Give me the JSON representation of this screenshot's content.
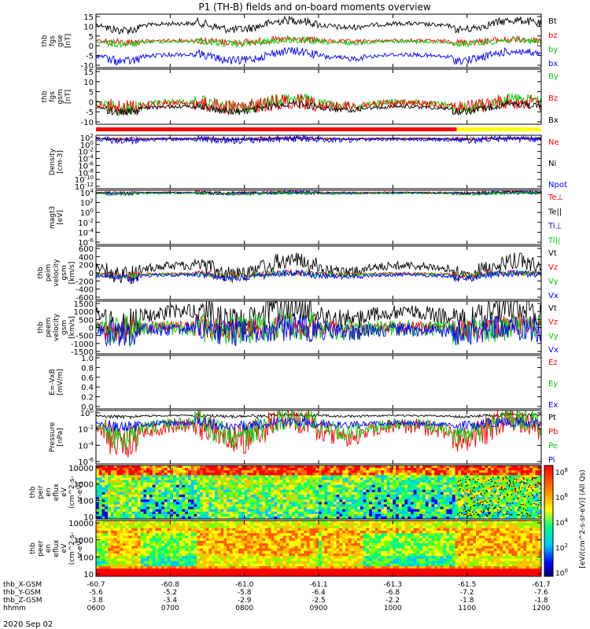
{
  "title": "P1 (TH-B) fields and on-board moments overview",
  "date_label": "2020 Sep 02",
  "chart_data": {
    "type": "line",
    "time_range_hhmm": [
      "0600",
      "1200"
    ],
    "panels": [
      {
        "id": "fgs_gse",
        "ylabel_lines": [
          "thb",
          "fgs",
          "gse",
          "[nT]"
        ],
        "ylim": [
          -15,
          15
        ],
        "ticks": [
          "15",
          "10",
          "5",
          "0",
          "-5",
          "-10"
        ],
        "legend": [
          {
            "label": "Bt",
            "color": "#000000"
          },
          {
            "label": "bz",
            "color": "#ff0000"
          },
          {
            "label": "by",
            "color": "#00cc00"
          },
          {
            "label": "bx",
            "color": "#0000ff"
          }
        ]
      },
      {
        "id": "fgs_gsm",
        "ylabel_lines": [
          "thb",
          "fgs",
          "gsm",
          "[nT]"
        ],
        "ylim": [
          -15,
          15
        ],
        "ticks": [
          "15",
          "10",
          "5",
          "0",
          "-5",
          "-10"
        ],
        "legend": [
          {
            "label": "By",
            "color": "#00cc00"
          },
          {
            "label": "Bz",
            "color": "#ff0000"
          },
          {
            "label": "Bx",
            "color": "#000000"
          }
        ]
      },
      {
        "id": "density",
        "ylabel_lines": [
          "Density",
          "[cm-3]"
        ],
        "ylim": [
          1e-12,
          100.0
        ],
        "scale": "log",
        "ticks": [
          "10^2",
          "10^0",
          "10^-2",
          "10^-4",
          "10^-6",
          "10^-8",
          "10^-10",
          "10^-12"
        ],
        "legend": [
          {
            "label": "Ne",
            "color": "#ff0000"
          },
          {
            "label": "Ni",
            "color": "#000000"
          },
          {
            "label": "Npot",
            "color": "#0000ff"
          }
        ]
      },
      {
        "id": "temperature",
        "ylabel_lines": [
          "magt3",
          "[eV]"
        ],
        "ylim": [
          1e-06,
          10000.0
        ],
        "scale": "log",
        "ticks": [
          "10^4",
          "10^2",
          "10^0",
          "10^-2",
          "10^-4",
          "10^-6"
        ],
        "legend": [
          {
            "label": "Te⊥",
            "color": "#ff0000"
          },
          {
            "label": "Te||",
            "color": "#000000"
          },
          {
            "label": "Ti⊥",
            "color": "#0000ff"
          },
          {
            "label": "Ti||",
            "color": "#00cc00"
          }
        ]
      },
      {
        "id": "peim_velocity",
        "ylabel_lines": [
          "thb",
          "peim",
          "velocity",
          "gsm",
          "[km/s]"
        ],
        "ylim": [
          -600,
          600
        ],
        "ticks": [
          "600",
          "400",
          "200",
          "0",
          "-200",
          "-400",
          "-600"
        ],
        "legend": [
          {
            "label": "Vt",
            "color": "#000000"
          },
          {
            "label": "Vz",
            "color": "#ff0000"
          },
          {
            "label": "Vy",
            "color": "#00cc00"
          },
          {
            "label": "Vx",
            "color": "#0000ff"
          }
        ]
      },
      {
        "id": "peem_velocity",
        "ylabel_lines": [
          "thb",
          "peem",
          "velocity",
          "gsm",
          "[km/s]"
        ],
        "ylim": [
          -1500,
          1500
        ],
        "ticks": [
          "1500",
          "1000",
          "500",
          "0",
          "-500",
          "-1000",
          "-1500"
        ],
        "legend": [
          {
            "label": "Vt",
            "color": "#000000"
          },
          {
            "label": "Vz",
            "color": "#ff0000"
          },
          {
            "label": "Vy",
            "color": "#00cc00"
          },
          {
            "label": "Vx",
            "color": "#0000ff"
          }
        ]
      },
      {
        "id": "e_field",
        "ylabel_lines": [
          "E=-VxB",
          "[mV/m]"
        ],
        "ylim": [
          0,
          1
        ],
        "ticks": [
          "1.0",
          "0.8",
          "0.6",
          "0.4",
          "0.2",
          "0.0"
        ],
        "legend": [
          {
            "label": "Ez",
            "color": "#ff0000"
          },
          {
            "label": "Ey",
            "color": "#00cc00"
          },
          {
            "label": "Ex",
            "color": "#0000ff"
          }
        ]
      },
      {
        "id": "pressure",
        "ylabel_lines": [
          "Pressure",
          "[nPa]"
        ],
        "ylim": [
          1e-06,
          1.0
        ],
        "scale": "log",
        "ticks": [
          "10^0",
          "10^-2",
          "10^-4",
          "10^-6"
        ],
        "legend": [
          {
            "label": "Pt",
            "color": "#000000"
          },
          {
            "label": "Pb",
            "color": "#ff0000"
          },
          {
            "label": "Pe",
            "color": "#00cc00"
          },
          {
            "label": "Pi",
            "color": "#0000ff"
          }
        ]
      },
      {
        "id": "peir_spec",
        "type": "heatmap",
        "ylabel_lines": [
          "thb",
          "peir",
          "en",
          "eflux",
          "eV",
          "(cm^2-s-",
          "sr-eV)"
        ],
        "ylim": [
          10,
          10000
        ],
        "scale": "log",
        "ticks": [
          "10000",
          "1000",
          "100",
          "10"
        ]
      },
      {
        "id": "peer_spec",
        "type": "heatmap",
        "ylabel_lines": [
          "thb",
          "peer",
          "en",
          "eflux",
          "eV",
          "(cm^2-s-",
          "sr-eV)"
        ],
        "ylim": [
          10,
          10000
        ],
        "scale": "log",
        "ticks": [
          "10000",
          "1000",
          "100",
          "10"
        ]
      }
    ],
    "colorbar": {
      "label": "[eV/(cm^2-s-sr-eV)] (All Qs)",
      "ticks": [
        "10^8",
        "10^6",
        "10^4",
        "10^2",
        "10^0"
      ]
    },
    "ephemeris": {
      "row_labels": [
        "thb_X-GSM",
        "thb_Y-GSM",
        "thb_Z-GSM",
        "hhmm"
      ],
      "columns": [
        [
          "-60.7",
          "-5.6",
          "-3.8",
          "0600"
        ],
        [
          "-60.8",
          "-5.2",
          "-3.4",
          "0700"
        ],
        [
          "-61.0",
          "-5.8",
          "-2.9",
          "0800"
        ],
        [
          "-61.1",
          "-6.4",
          "-2.5",
          "0900"
        ],
        [
          "-61.3",
          "-6.8",
          "-2.2",
          "1000"
        ],
        [
          "-61.5",
          "-7.2",
          "-1.8",
          "1100"
        ],
        [
          "-61.7",
          "-7.6",
          "-1.8",
          "1200"
        ]
      ]
    }
  }
}
